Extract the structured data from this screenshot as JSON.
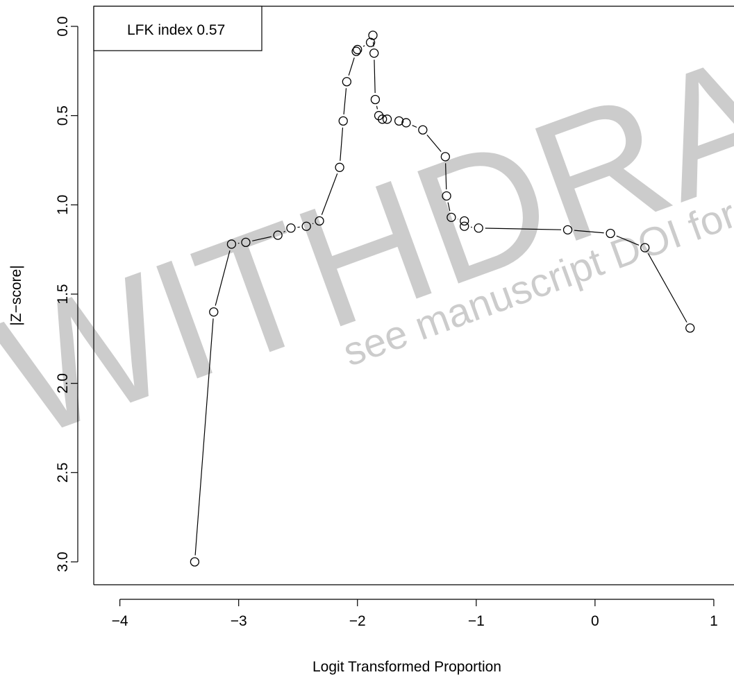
{
  "chart_data": {
    "type": "line",
    "title": "",
    "xlabel": "Logit Transformed Proportion",
    "ylabel": "|Z−score|",
    "xlim": [
      -4.22,
      1.17
    ],
    "ylim": [
      3.0,
      0.0
    ],
    "y_axis_inverted": true,
    "x_ticks": [
      -4,
      -3,
      -2,
      -1,
      0,
      1
    ],
    "x_tick_labels": [
      "−4",
      "−3",
      "−2",
      "−1",
      "0",
      "1"
    ],
    "y_ticks": [
      0.0,
      0.5,
      1.0,
      1.5,
      2.0,
      2.5,
      3.0
    ],
    "y_tick_labels": [
      "0.0",
      "0.5",
      "1.0",
      "1.5",
      "2.0",
      "2.5",
      "3.0"
    ],
    "grid": false,
    "legend": "top-left",
    "annotation": "LFK index 0.57",
    "marker": "open-circle",
    "series": [
      {
        "x": [
          -3.37,
          -3.21,
          -3.06,
          -2.94,
          -2.67,
          -2.56,
          -2.43,
          -2.32,
          -2.15,
          -2.12,
          -2.09,
          -2.01,
          -2.0,
          -1.89,
          -1.87,
          -1.86,
          -1.85,
          -1.82,
          -1.79,
          -1.75,
          -1.65,
          -1.59,
          -1.45,
          -1.26,
          -1.25,
          -1.21,
          -1.1,
          -1.1,
          -0.98,
          -0.23,
          0.13,
          0.42,
          0.8
        ],
        "values": [
          3.0,
          1.6,
          1.22,
          1.21,
          1.17,
          1.13,
          1.12,
          1.09,
          0.79,
          0.53,
          0.31,
          0.14,
          0.13,
          0.09,
          0.05,
          0.15,
          0.41,
          0.5,
          0.52,
          0.52,
          0.53,
          0.54,
          0.58,
          0.73,
          0.95,
          1.07,
          1.09,
          1.12,
          1.13,
          1.14,
          1.16,
          1.24,
          1.69
        ]
      }
    ]
  },
  "watermark": {
    "main": "WITHDRAWN",
    "sub": "see manuscript DOI for details"
  }
}
